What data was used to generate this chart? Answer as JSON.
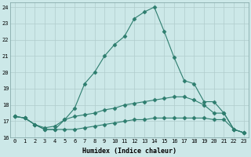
{
  "xlabel": "Humidex (Indice chaleur)",
  "x": [
    0,
    1,
    2,
    3,
    4,
    5,
    6,
    7,
    8,
    9,
    10,
    11,
    12,
    13,
    14,
    15,
    16,
    17,
    18,
    19,
    20,
    21,
    22,
    23
  ],
  "line1": [
    17.3,
    17.2,
    16.8,
    16.5,
    16.5,
    17.1,
    17.8,
    19.3,
    20.0,
    21.0,
    21.7,
    22.2,
    23.3,
    23.7,
    24.0,
    22.5,
    20.9,
    19.5,
    19.3,
    18.2,
    18.2,
    17.5,
    16.5,
    16.3
  ],
  "line2": [
    17.3,
    17.2,
    16.8,
    16.6,
    16.7,
    17.1,
    17.3,
    17.4,
    17.5,
    17.7,
    17.8,
    18.0,
    18.1,
    18.2,
    18.3,
    18.4,
    18.5,
    18.5,
    18.3,
    18.0,
    17.5,
    17.5,
    16.5,
    16.3
  ],
  "line3": [
    17.3,
    17.2,
    16.8,
    16.5,
    16.5,
    16.5,
    16.5,
    16.6,
    16.7,
    16.8,
    16.9,
    17.0,
    17.1,
    17.1,
    17.2,
    17.2,
    17.2,
    17.2,
    17.2,
    17.2,
    17.1,
    17.1,
    16.5,
    16.3
  ],
  "xlim_min": -0.5,
  "xlim_max": 23.5,
  "ylim_min": 16,
  "ylim_max": 24.3,
  "yticks": [
    16,
    17,
    18,
    19,
    20,
    21,
    22,
    23,
    24
  ],
  "line_color": "#2d7d6e",
  "bg_color": "#cce8e8",
  "grid_color": "#b0cccc",
  "marker": "D",
  "markersize": 2.5
}
